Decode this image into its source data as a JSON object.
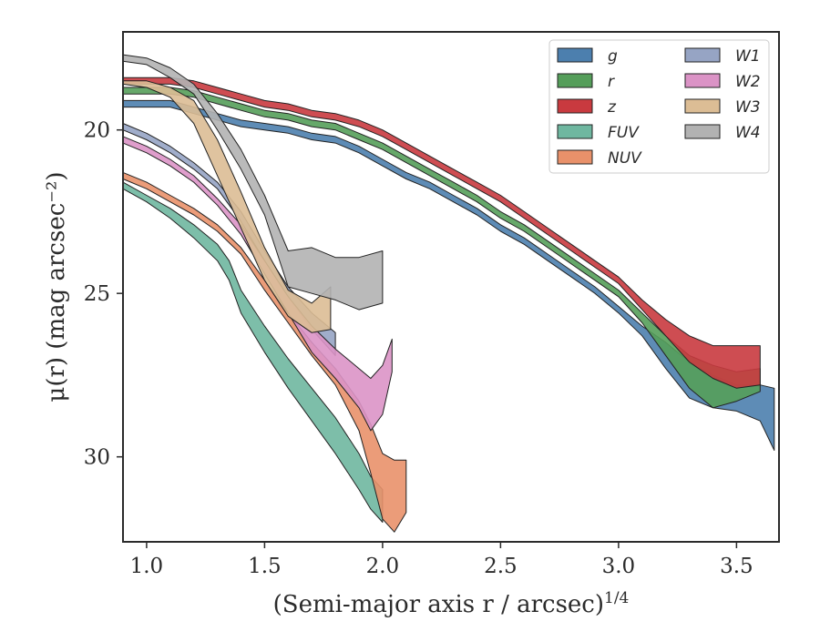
{
  "chart_data": {
    "type": "area",
    "xlabel": "(Semi-major axis r / arcsec)",
    "xlabel_sup": "1/4",
    "ylabel": "μ(r) (mag arcsec⁻²)",
    "xlim": [
      0.9,
      3.68
    ],
    "ylim": [
      32.6,
      17.0
    ],
    "y_inverted": true,
    "grid": false,
    "legend_position": "top-right",
    "legend_columns": 2,
    "x_ticks": [
      1.0,
      1.5,
      2.0,
      2.5,
      3.0,
      3.5
    ],
    "x_tick_labels": [
      "1.0",
      "1.5",
      "2.0",
      "2.5",
      "3.0",
      "3.5"
    ],
    "y_ticks": [
      20,
      25,
      30
    ],
    "y_tick_labels": [
      "20",
      "25",
      "30"
    ],
    "series": [
      {
        "name": "g",
        "color": "#4c7fae",
        "x": [
          0.9,
          1.0,
          1.1,
          1.2,
          1.3,
          1.4,
          1.5,
          1.6,
          1.7,
          1.8,
          1.9,
          2.0,
          2.1,
          2.2,
          2.3,
          2.4,
          2.5,
          2.6,
          2.7,
          2.8,
          2.9,
          3.0,
          3.1,
          3.2,
          3.3,
          3.4,
          3.5,
          3.6,
          3.66
        ],
        "y_upper": [
          19.1,
          19.1,
          19.1,
          19.3,
          19.5,
          19.7,
          19.8,
          19.9,
          20.1,
          20.2,
          20.5,
          20.9,
          21.3,
          21.6,
          22.0,
          22.4,
          22.9,
          23.3,
          23.8,
          24.3,
          24.8,
          25.4,
          26.0,
          26.5,
          27.1,
          27.5,
          27.8,
          27.8,
          27.9
        ],
        "y_lower": [
          19.3,
          19.3,
          19.3,
          19.5,
          19.7,
          19.9,
          20.0,
          20.1,
          20.3,
          20.4,
          20.7,
          21.1,
          21.5,
          21.8,
          22.2,
          22.6,
          23.1,
          23.5,
          24.0,
          24.5,
          25.0,
          25.6,
          26.3,
          27.3,
          28.2,
          28.5,
          28.6,
          28.9,
          29.8
        ]
      },
      {
        "name": "r",
        "color": "#559e5a",
        "x": [
          0.9,
          1.0,
          1.1,
          1.2,
          1.3,
          1.4,
          1.5,
          1.6,
          1.7,
          1.8,
          1.9,
          2.0,
          2.1,
          2.2,
          2.3,
          2.4,
          2.5,
          2.6,
          2.7,
          2.8,
          2.9,
          3.0,
          3.1,
          3.2,
          3.3,
          3.4,
          3.5,
          3.6
        ],
        "y_upper": [
          18.7,
          18.7,
          18.7,
          18.8,
          19.0,
          19.2,
          19.4,
          19.5,
          19.7,
          19.8,
          20.1,
          20.4,
          20.8,
          21.2,
          21.6,
          22.0,
          22.5,
          22.9,
          23.4,
          23.9,
          24.4,
          24.9,
          25.6,
          26.3,
          26.9,
          27.2,
          27.4,
          27.3
        ],
        "y_lower": [
          18.9,
          18.9,
          18.9,
          19.0,
          19.2,
          19.4,
          19.6,
          19.7,
          19.9,
          20.0,
          20.3,
          20.6,
          21.0,
          21.4,
          21.8,
          22.2,
          22.7,
          23.1,
          23.6,
          24.1,
          24.6,
          25.1,
          25.9,
          26.9,
          27.9,
          28.5,
          28.3,
          28.0
        ]
      },
      {
        "name": "z",
        "color": "#c93a3f",
        "x": [
          0.9,
          1.0,
          1.1,
          1.2,
          1.3,
          1.4,
          1.5,
          1.6,
          1.7,
          1.8,
          1.9,
          2.0,
          2.1,
          2.2,
          2.3,
          2.4,
          2.5,
          2.6,
          2.7,
          2.8,
          2.9,
          3.0,
          3.1,
          3.2,
          3.3,
          3.4,
          3.5,
          3.6
        ],
        "y_upper": [
          18.4,
          18.4,
          18.4,
          18.5,
          18.7,
          18.9,
          19.1,
          19.2,
          19.4,
          19.5,
          19.7,
          20.0,
          20.4,
          20.8,
          21.2,
          21.6,
          22.0,
          22.5,
          23.0,
          23.5,
          24.0,
          24.5,
          25.2,
          25.8,
          26.3,
          26.6,
          26.6,
          26.6
        ],
        "y_lower": [
          18.6,
          18.6,
          18.6,
          18.7,
          18.9,
          19.1,
          19.3,
          19.4,
          19.6,
          19.7,
          19.9,
          20.2,
          20.6,
          21.0,
          21.4,
          21.8,
          22.2,
          22.7,
          23.2,
          23.7,
          24.2,
          24.7,
          25.5,
          26.3,
          27.1,
          27.6,
          27.9,
          27.8
        ]
      },
      {
        "name": "FUV",
        "color": "#6fb7a0",
        "x": [
          0.9,
          1.0,
          1.1,
          1.2,
          1.3,
          1.35,
          1.4,
          1.5,
          1.6,
          1.7,
          1.8,
          1.9,
          1.95,
          2.0
        ],
        "y_upper": [
          21.6,
          22.0,
          22.4,
          22.9,
          23.5,
          24.0,
          24.9,
          26.0,
          27.0,
          27.9,
          28.8,
          29.9,
          30.6,
          31.0
        ],
        "y_lower": [
          21.8,
          22.2,
          22.7,
          23.3,
          24.0,
          24.6,
          25.6,
          26.8,
          27.9,
          28.9,
          29.9,
          31.0,
          31.6,
          32.0
        ]
      },
      {
        "name": "NUV",
        "color": "#e9916a",
        "x": [
          0.9,
          1.0,
          1.1,
          1.2,
          1.3,
          1.4,
          1.5,
          1.6,
          1.7,
          1.8,
          1.9,
          1.95,
          2.0,
          2.05,
          2.1
        ],
        "y_upper": [
          21.3,
          21.6,
          22.0,
          22.4,
          22.9,
          23.6,
          24.6,
          25.6,
          26.5,
          27.3,
          28.3,
          29.0,
          29.9,
          30.1,
          30.1
        ],
        "y_lower": [
          21.5,
          21.8,
          22.2,
          22.6,
          23.1,
          23.8,
          24.9,
          25.9,
          26.9,
          27.8,
          29.2,
          30.5,
          31.9,
          32.3,
          31.7
        ]
      },
      {
        "name": "W1",
        "color": "#96a4c4",
        "x": [
          0.9,
          1.0,
          1.1,
          1.2,
          1.3,
          1.4,
          1.5,
          1.6,
          1.7,
          1.8
        ],
        "y_upper": [
          19.8,
          20.1,
          20.5,
          21.0,
          21.6,
          22.5,
          23.7,
          24.8,
          25.6,
          26.2
        ],
        "y_lower": [
          20.0,
          20.3,
          20.7,
          21.2,
          21.8,
          22.8,
          24.0,
          25.1,
          26.1,
          26.9
        ]
      },
      {
        "name": "W2",
        "color": "#db93c6",
        "x": [
          0.9,
          1.0,
          1.1,
          1.2,
          1.3,
          1.4,
          1.5,
          1.6,
          1.7,
          1.8,
          1.9,
          1.95,
          2.0,
          2.04
        ],
        "y_upper": [
          20.2,
          20.5,
          20.9,
          21.4,
          22.1,
          22.9,
          24.0,
          25.1,
          26.0,
          26.7,
          27.3,
          27.6,
          27.2,
          26.4
        ],
        "y_lower": [
          20.4,
          20.7,
          21.1,
          21.6,
          22.3,
          23.2,
          24.4,
          25.6,
          26.8,
          27.6,
          28.5,
          29.2,
          28.7,
          27.4
        ]
      },
      {
        "name": "W3",
        "color": "#dcbd95",
        "x": [
          0.9,
          1.0,
          1.1,
          1.2,
          1.3,
          1.4,
          1.5,
          1.6,
          1.7,
          1.78
        ],
        "y_upper": [
          18.5,
          18.5,
          18.7,
          19.1,
          20.3,
          21.9,
          23.6,
          24.9,
          25.3,
          24.8
        ],
        "y_lower": [
          18.6,
          18.7,
          19.0,
          19.8,
          21.4,
          23.0,
          24.6,
          25.7,
          26.2,
          26.1
        ]
      },
      {
        "name": "W4",
        "color": "#b2b2b2",
        "x": [
          0.9,
          1.0,
          1.1,
          1.2,
          1.3,
          1.4,
          1.5,
          1.6,
          1.7,
          1.8,
          1.9,
          2.0
        ],
        "y_upper": [
          17.7,
          17.8,
          18.1,
          18.6,
          19.5,
          20.6,
          22.0,
          23.7,
          23.6,
          23.9,
          23.9,
          23.7
        ],
        "y_lower": [
          17.9,
          18.0,
          18.4,
          18.9,
          20.0,
          21.2,
          22.6,
          24.8,
          25.0,
          25.2,
          25.5,
          25.3
        ]
      }
    ]
  }
}
